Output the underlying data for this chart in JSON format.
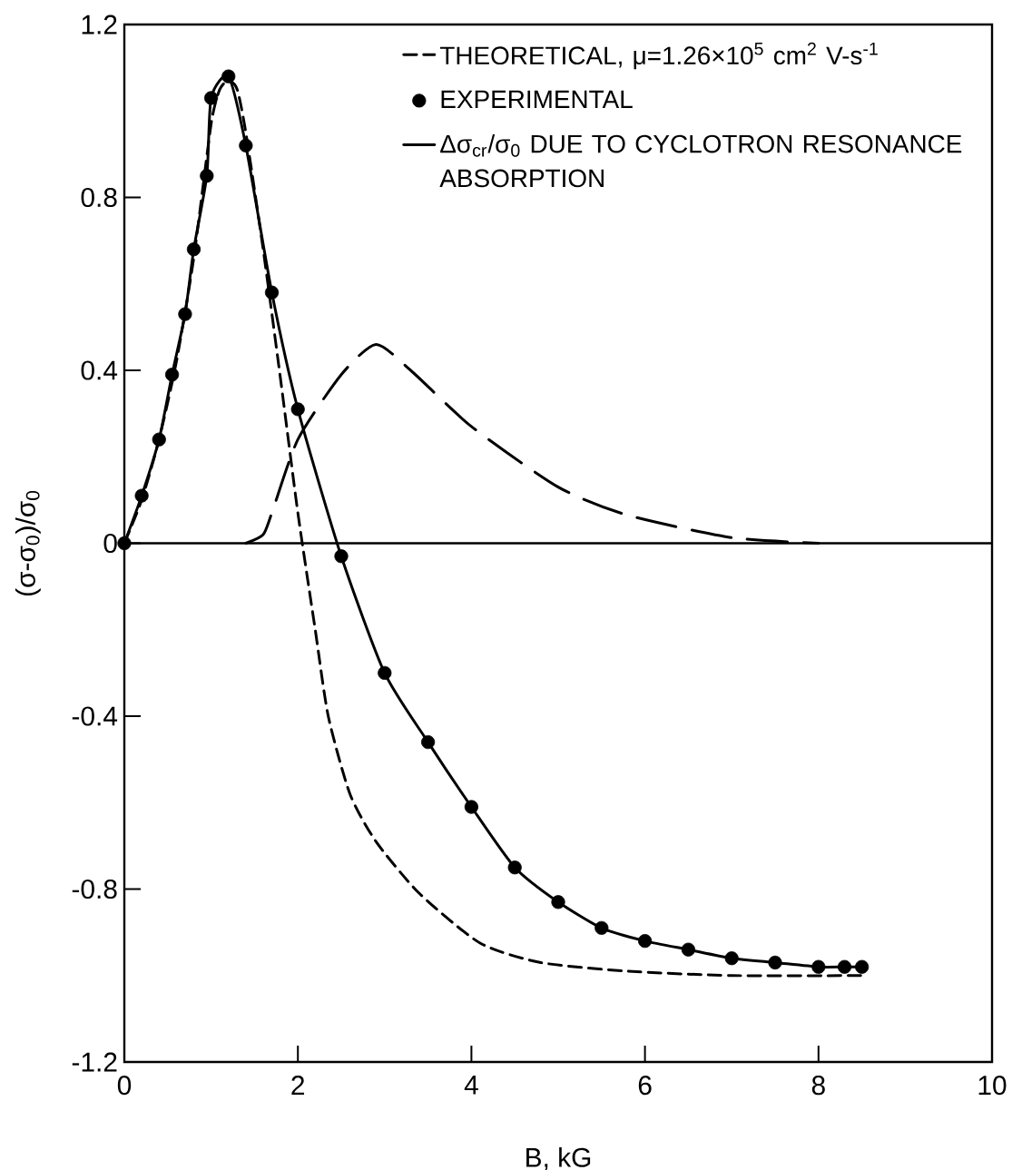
{
  "chart_data": {
    "type": "line",
    "xlabel": "B, kG",
    "ylabel": "(σ-σ$_{0}$)/σ$_{0}$",
    "xlim": [
      0,
      10
    ],
    "ylim": [
      -1.2,
      1.2
    ],
    "xticks": [
      0,
      2,
      4,
      6,
      8,
      10
    ],
    "yticks": [
      -1.2,
      -0.8,
      -0.4,
      0,
      0.4,
      0.8,
      1.2
    ],
    "legend": "top right",
    "series": [
      {
        "name": "THEORETICAL, μ=1.26×10$^{5}$ cm$^{2}$ V-s$^{-1}$",
        "line_style": "dashed",
        "marker": "none",
        "color": "#000000",
        "x": [
          0,
          0.2,
          0.4,
          0.6,
          0.8,
          1.0,
          1.1,
          1.2,
          1.3,
          1.4,
          1.6,
          1.8,
          2.0,
          2.2,
          2.35,
          2.6,
          2.9,
          3.4,
          4.1,
          4.8,
          5.8,
          7,
          8.5
        ],
        "values": [
          0,
          0.1,
          0.24,
          0.42,
          0.66,
          0.97,
          1.05,
          1.07,
          1.05,
          0.95,
          0.68,
          0.38,
          0.07,
          -0.2,
          -0.4,
          -0.58,
          -0.69,
          -0.81,
          -0.925,
          -0.97,
          -0.99,
          -1.0,
          -1.0
        ]
      },
      {
        "name": "EXPERIMENTAL",
        "type": "scatter",
        "marker": "circle",
        "color": "#000000",
        "x": [
          0,
          0.2,
          0.4,
          0.55,
          0.7,
          0.8,
          0.95,
          1.0,
          1.2,
          1.4,
          1.7,
          2.0,
          2.5,
          3.0,
          3.5,
          4.0,
          4.5,
          5.0,
          5.5,
          6.0,
          6.5,
          7.0,
          7.5,
          8.0,
          8.3,
          8.5
        ],
        "values": [
          0,
          0.11,
          0.24,
          0.39,
          0.53,
          0.68,
          0.85,
          1.03,
          1.08,
          0.92,
          0.58,
          0.31,
          -0.03,
          -0.3,
          -0.46,
          -0.61,
          -0.75,
          -0.83,
          -0.89,
          -0.92,
          -0.94,
          -0.96,
          -0.97,
          -0.98,
          -0.98,
          -0.98
        ]
      },
      {
        "type": "line",
        "line_style": "solid",
        "marker": "none",
        "color": "#000000",
        "x": [
          0,
          0.2,
          0.4,
          0.55,
          0.7,
          0.8,
          0.95,
          1.0,
          1.2,
          1.4,
          1.7,
          2.0,
          2.5,
          3.0,
          3.5,
          4.0,
          4.5,
          5.0,
          5.5,
          6.0,
          6.5,
          7.0,
          7.5,
          8.0,
          8.3,
          8.5
        ],
        "values": [
          0,
          0.11,
          0.24,
          0.39,
          0.53,
          0.68,
          0.85,
          1.03,
          1.08,
          0.92,
          0.58,
          0.31,
          -0.03,
          -0.3,
          -0.46,
          -0.61,
          -0.75,
          -0.83,
          -0.89,
          -0.92,
          -0.94,
          -0.96,
          -0.97,
          -0.98,
          -0.98,
          -0.98
        ]
      },
      {
        "name": "Δσ$_{cr}$/σ$_{0}$ DUE TO CYCLOTRON RESONANCE ABSORPTION",
        "type": "line",
        "line_style": "dashed",
        "marker": "none",
        "color": "#000000",
        "x": [
          1.4,
          1.6,
          1.7,
          2.0,
          2.5,
          2.9,
          3.3,
          4.0,
          5.0,
          5.8,
          7.0,
          8.0
        ],
        "values": [
          0,
          0.02,
          0.07,
          0.24,
          0.39,
          0.46,
          0.4,
          0.27,
          0.13,
          0.065,
          0.013,
          0
        ]
      }
    ],
    "ref_lines": [
      {
        "axis": "y",
        "value": 0,
        "color": "#000000",
        "line_style": "solid"
      }
    ]
  }
}
